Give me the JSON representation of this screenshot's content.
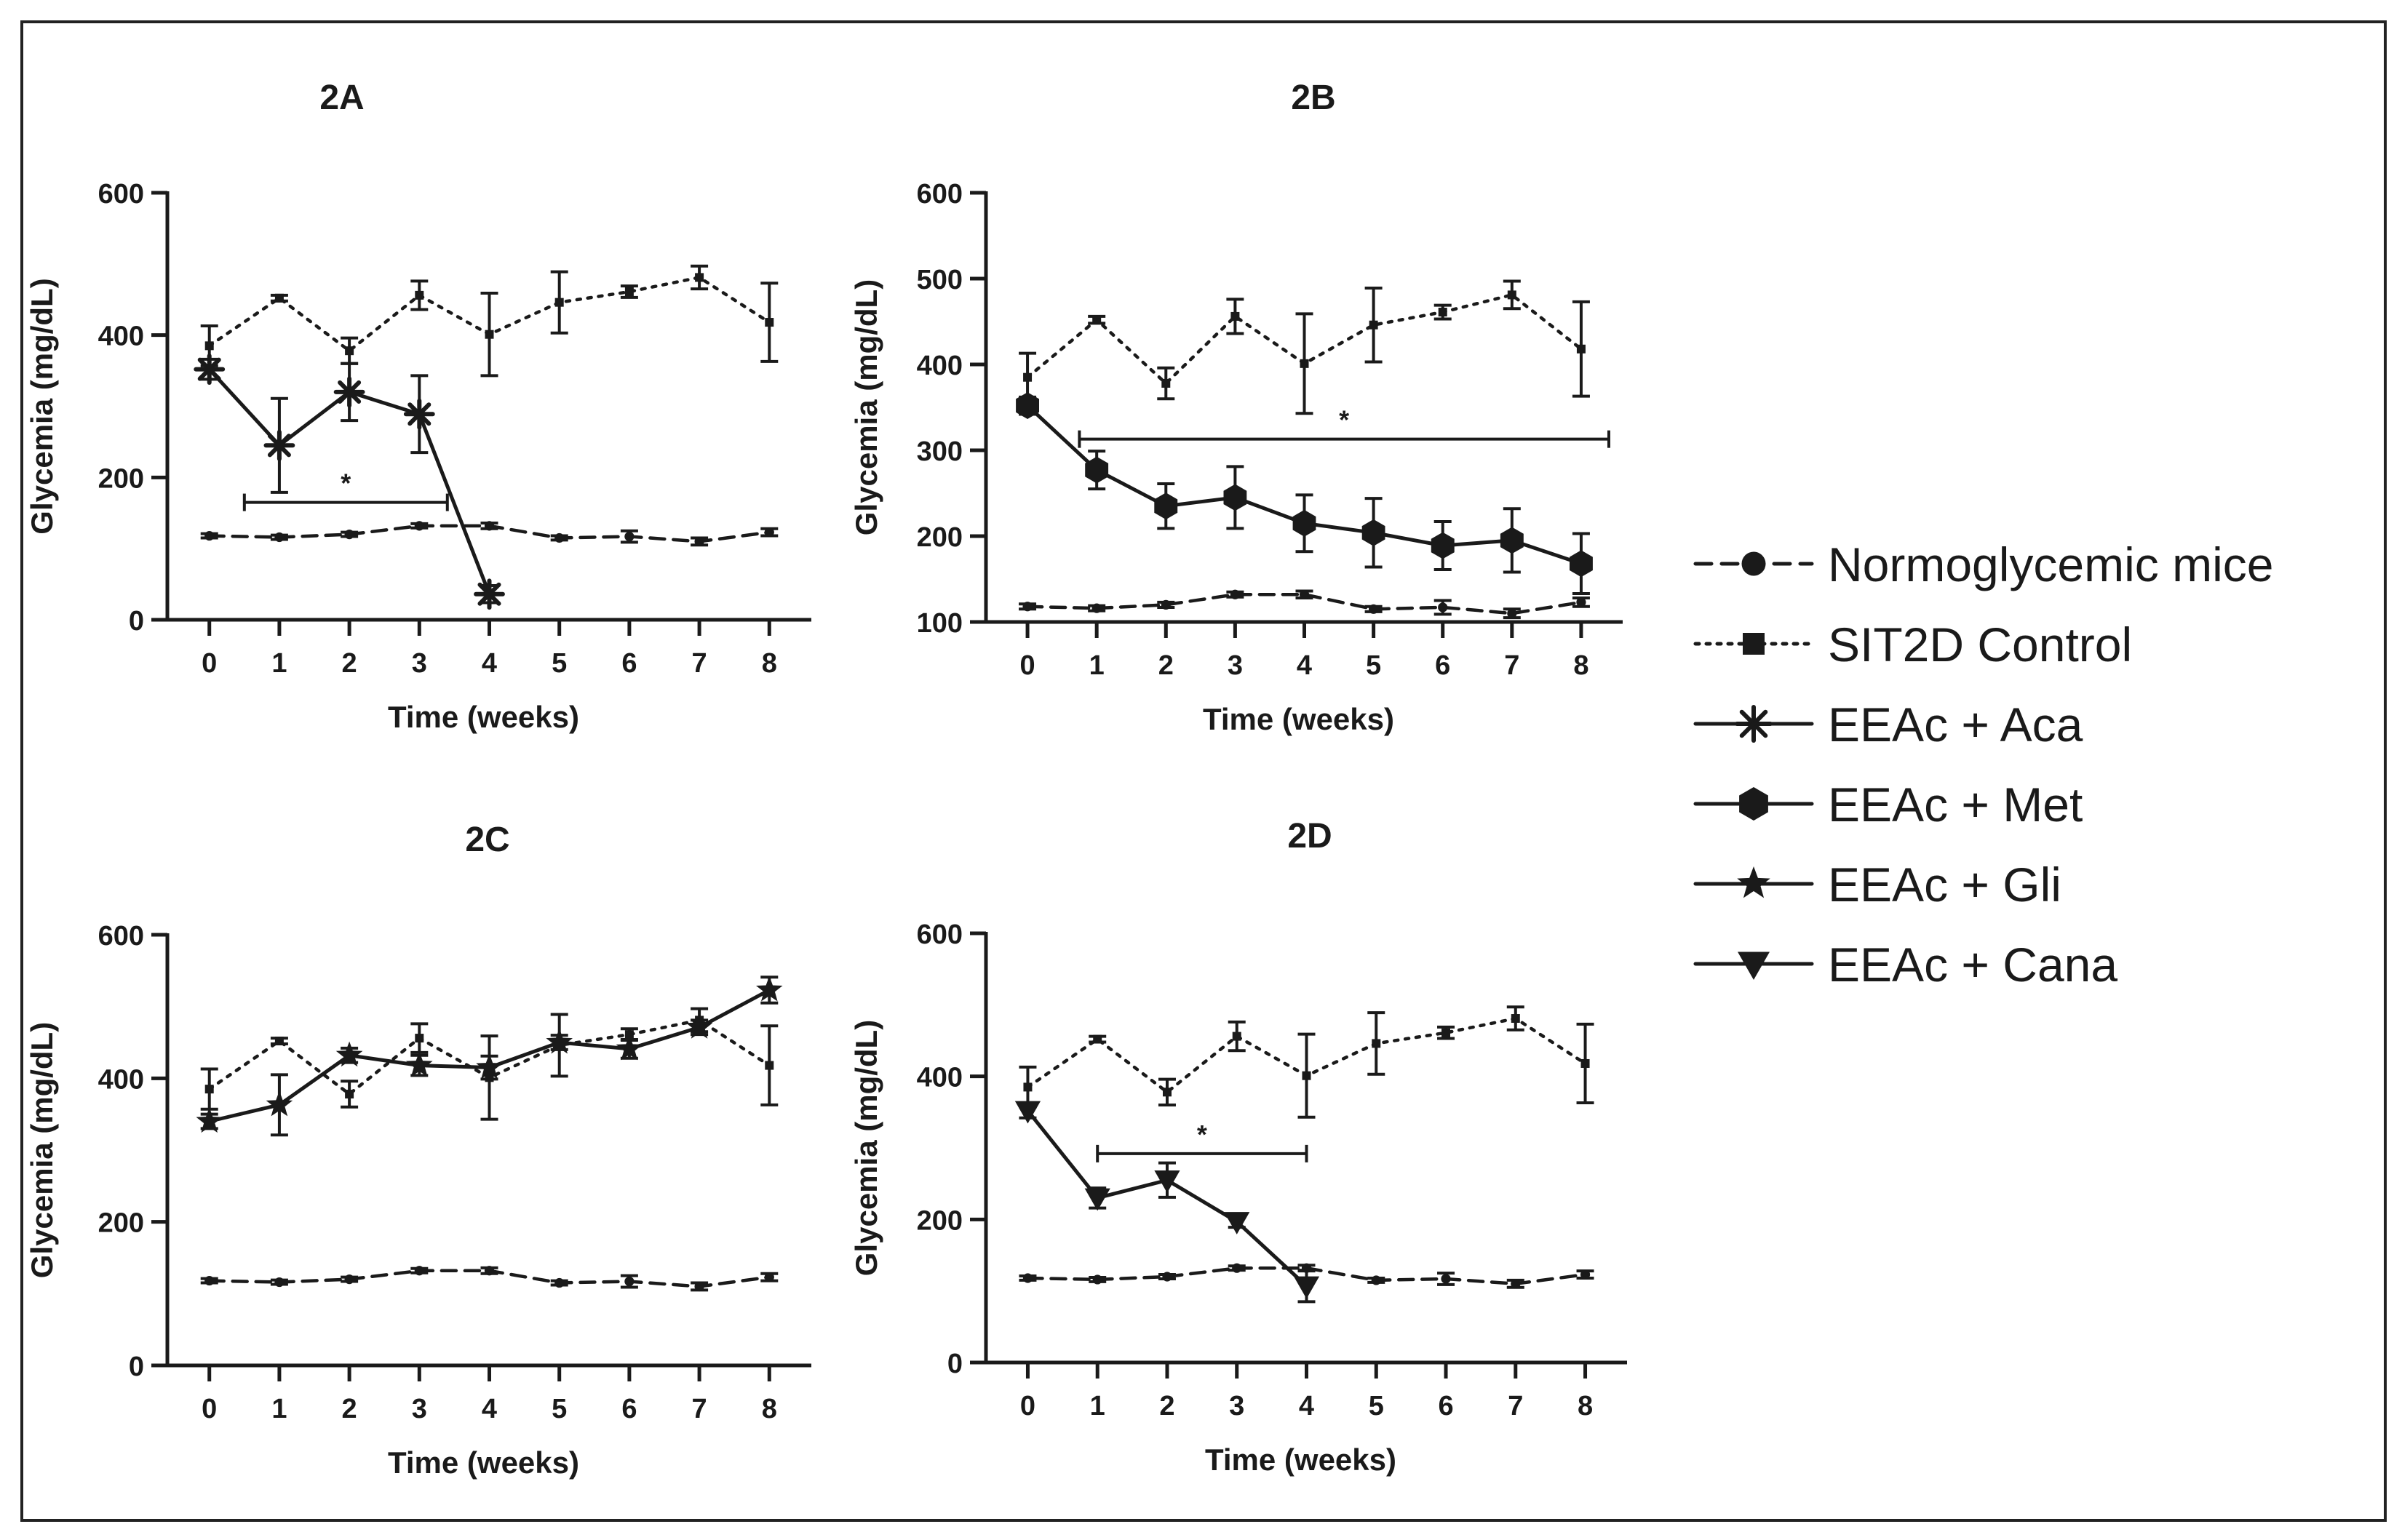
{
  "legend": {
    "items": [
      {
        "label": "Normoglycemic mice",
        "line": "dashed",
        "marker": "circle"
      },
      {
        "label": "SIT2D Control",
        "line": "dotted",
        "marker": "square"
      },
      {
        "label": "EEAc + Aca",
        "line": "solid",
        "marker": "asterisk"
      },
      {
        "label": "EEAc + Met",
        "line": "solid",
        "marker": "hexagon"
      },
      {
        "label": "EEAc + Gli",
        "line": "solid",
        "marker": "star"
      },
      {
        "label": "EEAc + Cana",
        "line": "solid",
        "marker": "triangle-down"
      }
    ]
  },
  "chart_data": [
    {
      "type": "line",
      "title": "2A",
      "xlabel": "Time (weeks)",
      "ylabel": "Glycemia (mg/dL)",
      "x": [
        0,
        1,
        2,
        3,
        4,
        5,
        6,
        7,
        8
      ],
      "xlim": [
        -0.6,
        8.6
      ],
      "ylim": [
        0,
        600
      ],
      "yticks": [
        0,
        200,
        400,
        600
      ],
      "series": [
        {
          "name": "Normoglycemic mice",
          "style": "dashed",
          "marker": "circle",
          "x": [
            0,
            1,
            2,
            3,
            4,
            5,
            6,
            7,
            8
          ],
          "values": [
            118,
            116,
            120,
            132,
            132,
            115,
            117,
            110,
            123
          ],
          "err": [
            3,
            3,
            3,
            3,
            4,
            3,
            8,
            5,
            5
          ]
        },
        {
          "name": "SIT2D Control",
          "style": "dotted",
          "marker": "square",
          "x": [
            0,
            1,
            2,
            3,
            4,
            5,
            6,
            7,
            8
          ],
          "values": [
            385,
            452,
            378,
            456,
            401,
            446,
            461,
            481,
            418
          ],
          "err": [
            28,
            4,
            18,
            20,
            58,
            43,
            8,
            16,
            55
          ]
        },
        {
          "name": "EEAc + Aca",
          "style": "solid",
          "marker": "asterisk",
          "x": [
            0,
            1,
            2,
            3,
            4
          ],
          "values": [
            352,
            245,
            320,
            289,
            36
          ],
          "err": [
            14,
            66,
            40,
            54,
            12
          ]
        }
      ],
      "significance": {
        "label": "*",
        "from": 0.5,
        "to": 3.4,
        "y": 165
      }
    },
    {
      "type": "line",
      "title": "2B",
      "xlabel": "Time (weeks)",
      "ylabel": "Glycemia (mg/dL)",
      "x": [
        0,
        1,
        2,
        3,
        4,
        5,
        6,
        7,
        8
      ],
      "xlim": [
        -0.6,
        8.6
      ],
      "ylim": [
        100,
        600
      ],
      "yticks": [
        100,
        200,
        300,
        400,
        500,
        600
      ],
      "series": [
        {
          "name": "Normoglycemic mice",
          "style": "dashed",
          "marker": "circle",
          "x": [
            0,
            1,
            2,
            3,
            4,
            5,
            6,
            7,
            8
          ],
          "values": [
            118,
            116,
            120,
            132,
            132,
            115,
            117,
            110,
            123
          ],
          "err": [
            3,
            3,
            3,
            3,
            4,
            3,
            8,
            5,
            5
          ]
        },
        {
          "name": "SIT2D Control",
          "style": "dotted",
          "marker": "square",
          "x": [
            0,
            1,
            2,
            3,
            4,
            5,
            6,
            7,
            8
          ],
          "values": [
            385,
            452,
            378,
            456,
            401,
            446,
            461,
            481,
            418
          ],
          "err": [
            28,
            4,
            18,
            20,
            58,
            43,
            8,
            16,
            55
          ]
        },
        {
          "name": "EEAc + Met",
          "style": "solid",
          "marker": "hexagon",
          "x": [
            0,
            1,
            2,
            3,
            4,
            5,
            6,
            7,
            8
          ],
          "values": [
            352,
            277,
            235,
            245,
            215,
            204,
            189,
            195,
            168
          ],
          "err": [
            10,
            22,
            26,
            36,
            33,
            40,
            28,
            37,
            35
          ]
        }
      ],
      "significance": {
        "label": "*",
        "from": 0.75,
        "to": 8.4,
        "y": 313
      }
    },
    {
      "type": "line",
      "title": "2C",
      "xlabel": "Time (weeks)",
      "ylabel": "Glycemia (mg/dL)",
      "x": [
        0,
        1,
        2,
        3,
        4,
        5,
        6,
        7,
        8
      ],
      "xlim": [
        -0.6,
        8.6
      ],
      "ylim": [
        0,
        600
      ],
      "yticks": [
        0,
        200,
        400,
        600
      ],
      "series": [
        {
          "name": "Normoglycemic mice",
          "style": "dashed",
          "marker": "circle",
          "x": [
            0,
            1,
            2,
            3,
            4,
            5,
            6,
            7,
            8
          ],
          "values": [
            118,
            116,
            120,
            132,
            132,
            115,
            117,
            110,
            123
          ],
          "err": [
            3,
            3,
            3,
            3,
            4,
            3,
            8,
            5,
            5
          ]
        },
        {
          "name": "SIT2D Control",
          "style": "dotted",
          "marker": "square",
          "x": [
            0,
            1,
            2,
            3,
            4,
            5,
            6,
            7,
            8
          ],
          "values": [
            385,
            452,
            378,
            456,
            401,
            446,
            461,
            481,
            418
          ],
          "err": [
            28,
            4,
            18,
            20,
            58,
            43,
            8,
            16,
            55
          ]
        },
        {
          "name": "EEAc + Gli",
          "style": "solid",
          "marker": "star",
          "x": [
            0,
            1,
            2,
            3,
            4,
            5,
            6,
            7,
            8
          ],
          "values": [
            340,
            363,
            432,
            418,
            415,
            450,
            441,
            471,
            523
          ],
          "err": [
            10,
            42,
            10,
            14,
            16,
            10,
            13,
            10,
            18
          ]
        }
      ]
    },
    {
      "type": "line",
      "title": "2D",
      "xlabel": "Time (weeks)",
      "ylabel": "Glycemia (mg/dL)",
      "x": [
        0,
        1,
        2,
        3,
        4,
        5,
        6,
        7,
        8
      ],
      "xlim": [
        -0.6,
        8.6
      ],
      "ylim": [
        0,
        600
      ],
      "yticks": [
        0,
        200,
        400,
        600
      ],
      "series": [
        {
          "name": "Normoglycemic mice",
          "style": "dashed",
          "marker": "circle",
          "x": [
            0,
            1,
            2,
            3,
            4,
            5,
            6,
            7,
            8
          ],
          "values": [
            118,
            116,
            120,
            132,
            132,
            115,
            117,
            110,
            123
          ],
          "err": [
            3,
            3,
            3,
            3,
            4,
            3,
            8,
            5,
            5
          ]
        },
        {
          "name": "SIT2D Control",
          "style": "dotted",
          "marker": "square",
          "x": [
            0,
            1,
            2,
            3,
            4,
            5,
            6,
            7,
            8
          ],
          "values": [
            385,
            452,
            378,
            456,
            401,
            446,
            461,
            481,
            418
          ],
          "err": [
            28,
            4,
            18,
            20,
            58,
            43,
            8,
            16,
            55
          ]
        },
        {
          "name": "EEAc + Cana",
          "style": "solid",
          "marker": "triangle-down",
          "x": [
            0,
            1,
            2,
            3,
            4
          ],
          "values": [
            352,
            230,
            255,
            197,
            107
          ],
          "err": [
            10,
            14,
            24,
            8,
            22
          ]
        }
      ],
      "significance": {
        "label": "*",
        "from": 1,
        "to": 4,
        "y": 292
      }
    }
  ]
}
